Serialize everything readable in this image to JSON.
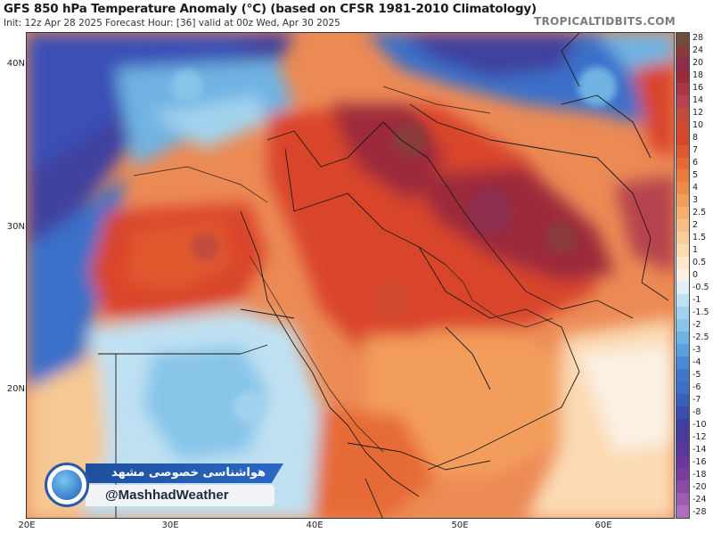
{
  "header": {
    "title": "GFS 850 hPa Temperature Anomaly (°C) (based on CFSR 1981-2010 Climatology)",
    "subtitle": "Init: 12z Apr 28 2025   Forecast Hour: [36]   valid at 00z Wed, Apr 30 2025",
    "brand": "TROPICALTIDBITS.COM"
  },
  "map": {
    "variable": "850 hPa temperature anomaly",
    "units": "°C",
    "lat_labels": [
      "40N",
      "30N",
      "20N"
    ],
    "lon_labels": [
      "20E",
      "30E",
      "40E",
      "50E",
      "60E"
    ],
    "palette": {
      "strong_warm": "#9c2a3a",
      "warm": "#d9452b",
      "mild_warm": "#f08a4b",
      "slight_warm": "#f6c893",
      "neutral": "#fbf1e4",
      "slight_cool": "#bfe1f2",
      "cool": "#6fb3e3",
      "cold": "#3b6fc9",
      "very_cold": "#3f3f9f"
    }
  },
  "colorbar": {
    "labels": [
      "28",
      "24",
      "20",
      "18",
      "16",
      "14",
      "12",
      "10",
      "8",
      "7",
      "6",
      "5",
      "4",
      "3",
      "2.5",
      "2",
      "1.5",
      "1",
      "0.5",
      "0",
      "-0.5",
      "-1",
      "-1.5",
      "-2",
      "-2.5",
      "-3",
      "-4",
      "-5",
      "-6",
      "-7",
      "-8",
      "-10",
      "-12",
      "-14",
      "-16",
      "-18",
      "-20",
      "-24",
      "-28"
    ],
    "colors": [
      "#6e4d3c",
      "#8b3a3a",
      "#8f2d4f",
      "#9c2a3a",
      "#a93545",
      "#b5424e",
      "#c24b3e",
      "#cf4a2e",
      "#d9452b",
      "#e0582f",
      "#e66a35",
      "#ec7b3d",
      "#f08a4b",
      "#f39d5c",
      "#f6ae6f",
      "#f8be85",
      "#f9cd9c",
      "#fbdab3",
      "#fde8cc",
      "#fbf1e4",
      "#dff0f6",
      "#bfe1f2",
      "#a2d3ee",
      "#87c5e9",
      "#6fb3e3",
      "#5aa0dd",
      "#4a8bd6",
      "#3f77cf",
      "#3b6fc9",
      "#3a5fbd",
      "#3c4fb0",
      "#3f3f9f",
      "#4b3a9d",
      "#5a389c",
      "#6a389c",
      "#7a3d9c",
      "#8a4ba6",
      "#9b5cb2",
      "#ad6ebf"
    ]
  },
  "watermark": {
    "persian_text": "هواشناسی خصوصی مشهد",
    "handle": "@MashhadWeather"
  }
}
